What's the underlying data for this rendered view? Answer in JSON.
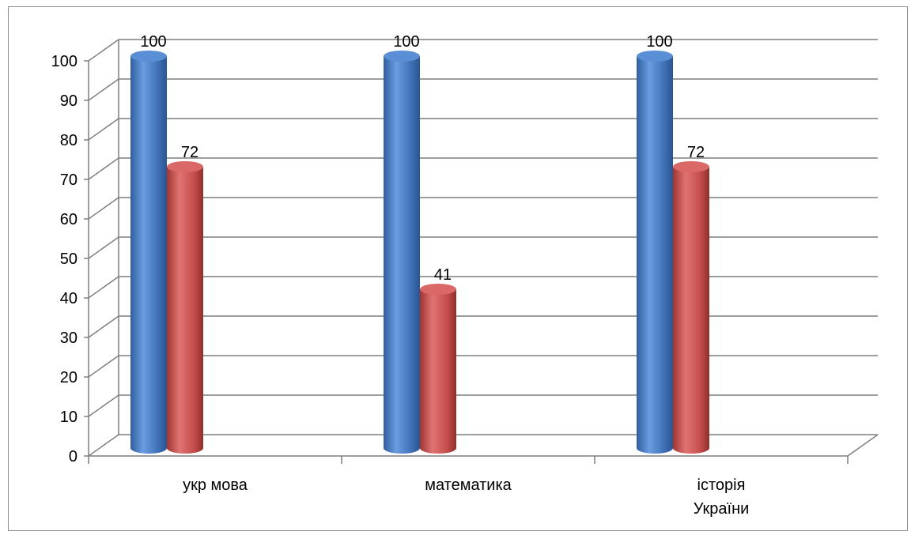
{
  "chart_data": {
    "type": "bar",
    "title": "",
    "xlabel": "",
    "ylabel": "",
    "ylim": [
      0,
      100
    ],
    "yticks": [
      0,
      10,
      20,
      30,
      40,
      50,
      60,
      70,
      80,
      90,
      100
    ],
    "grid": true,
    "legend": "none",
    "categories": [
      [
        "укр мова"
      ],
      [
        "математика"
      ],
      [
        "історія",
        "України"
      ]
    ],
    "series": [
      {
        "values": [
          100,
          100,
          100
        ],
        "color": "#4a7ec4"
      },
      {
        "values": [
          72,
          41,
          72
        ],
        "color": "#c94f4d"
      }
    ],
    "data_labels": true
  }
}
